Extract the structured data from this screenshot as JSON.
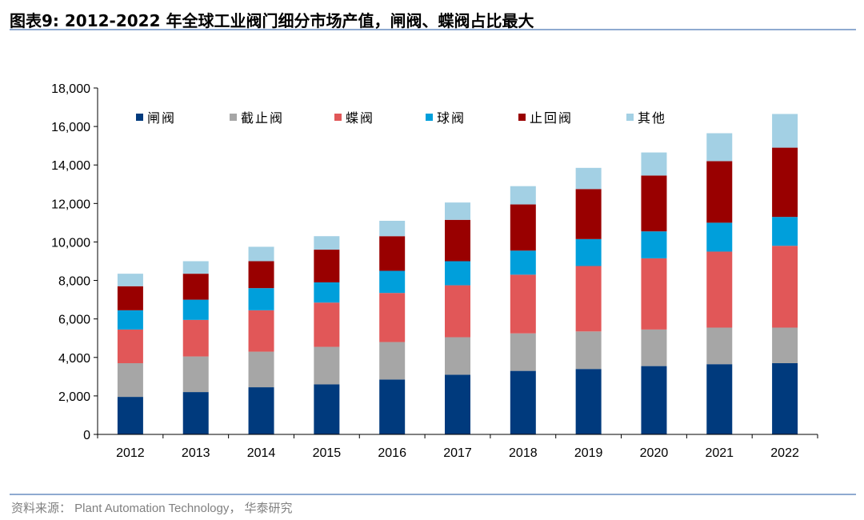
{
  "title": "图表9:  2012-2022 年全球工业阀门细分市场产值，闸阀、蝶阀占比最大",
  "source": "资料来源：  Plant Automation Technology，  华泰研究",
  "chart_data": {
    "type": "bar",
    "stacked": true,
    "categories": [
      "2012",
      "2013",
      "2014",
      "2015",
      "2016",
      "2017",
      "2018",
      "2019",
      "2020",
      "2021",
      "2022"
    ],
    "ylim": [
      0,
      18000
    ],
    "yticks": [
      0,
      2000,
      4000,
      6000,
      8000,
      10000,
      12000,
      14000,
      16000,
      18000
    ],
    "ytick_labels": [
      "0",
      "2,000",
      "4,000",
      "6,000",
      "8,000",
      "10,000",
      "12,000",
      "14,000",
      "16,000",
      "18,000"
    ],
    "legend_position": "top",
    "series": [
      {
        "name": "闸阀",
        "color": "#003a7d",
        "values": [
          1950,
          2200,
          2450,
          2600,
          2850,
          3100,
          3300,
          3400,
          3550,
          3650,
          3700
        ]
      },
      {
        "name": "截止阀",
        "color": "#a6a6a6",
        "values": [
          1750,
          1850,
          1850,
          1950,
          1950,
          1950,
          1950,
          1950,
          1900,
          1900,
          1850
        ]
      },
      {
        "name": "蝶阀",
        "color": "#e15758",
        "values": [
          1750,
          1900,
          2150,
          2300,
          2550,
          2700,
          3050,
          3400,
          3700,
          3950,
          4250
        ]
      },
      {
        "name": "球阀",
        "color": "#009fdb",
        "values": [
          1000,
          1050,
          1150,
          1050,
          1150,
          1250,
          1250,
          1400,
          1400,
          1500,
          1500
        ]
      },
      {
        "name": "止回阀",
        "color": "#990000",
        "values": [
          1250,
          1350,
          1400,
          1700,
          1800,
          2150,
          2400,
          2600,
          2900,
          3200,
          3600
        ]
      },
      {
        "name": "其他",
        "color": "#a3d0e4",
        "values": [
          650,
          650,
          750,
          700,
          800,
          900,
          950,
          1100,
          1200,
          1450,
          1750
        ]
      }
    ]
  }
}
